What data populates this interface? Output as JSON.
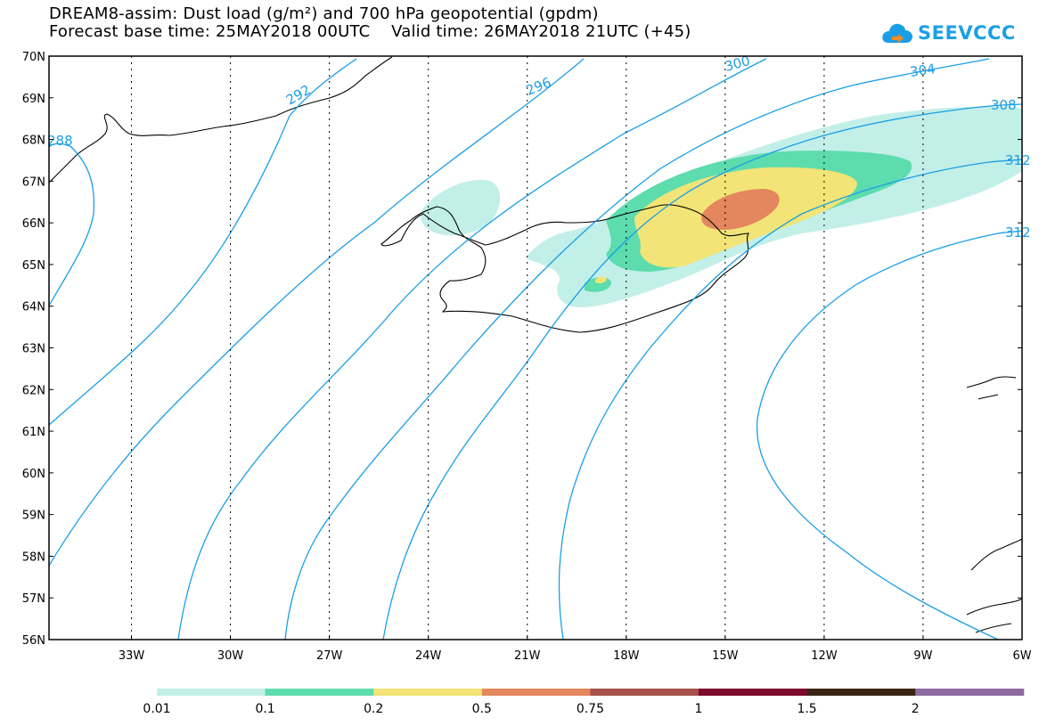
{
  "title": {
    "line1": "DREAM8-assim: Dust load (g/m²) and 700 hPa geopotential (gpdm)",
    "line2": "Forecast base time: 25MAY2018 00UTC    Valid time: 26MAY2018 21UTC (+45)"
  },
  "logo": {
    "text": "SEEVCCC",
    "icon": "cloud-arrow-icon"
  },
  "axes": {
    "lat_labels": [
      "70N",
      "69N",
      "68N",
      "67N",
      "66N",
      "65N",
      "64N",
      "63N",
      "62N",
      "61N",
      "60N",
      "59N",
      "58N",
      "57N",
      "56N"
    ],
    "lon_labels": [
      "33W",
      "30W",
      "27W",
      "24W",
      "21W",
      "18W",
      "15W",
      "12W",
      "9W",
      "6W"
    ],
    "lat_range": [
      56,
      70
    ],
    "lon_range": [
      -35.5,
      -6
    ]
  },
  "contours": {
    "color": "#1a9fe6",
    "labels": [
      "288",
      "292",
      "296",
      "300",
      "304",
      "308",
      "312",
      "312"
    ]
  },
  "colorbar": {
    "colors": [
      "#c3efe9",
      "#5ddcae",
      "#f2e476",
      "#e4865e",
      "#a7524c",
      "#7b0a2c",
      "#3b2513",
      "#8e6aa0"
    ],
    "labels": [
      "0.01",
      "0.1",
      "0.2",
      "0.5",
      "0.75",
      "1",
      "1.5",
      "2"
    ]
  }
}
